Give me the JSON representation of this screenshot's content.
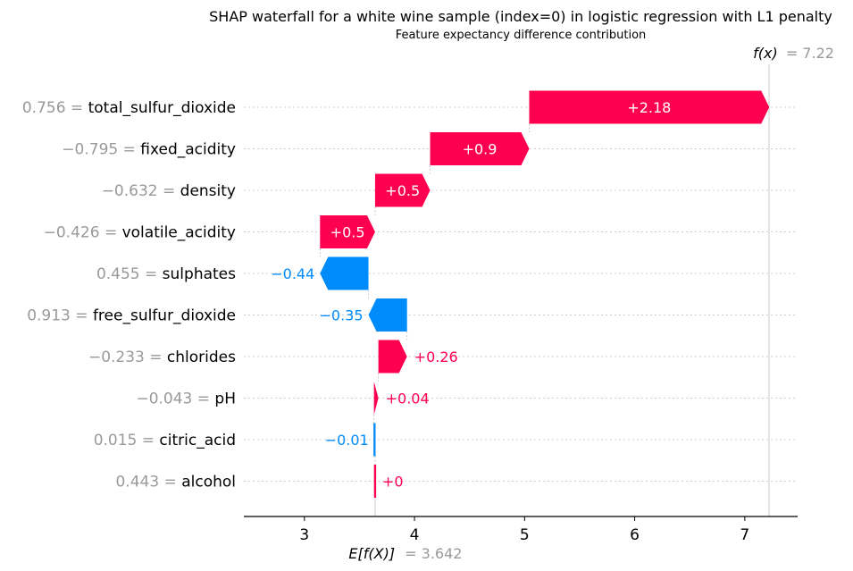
{
  "chart_data": {
    "type": "waterfall",
    "title": "SHAP waterfall for a white wine sample (index=0) in logistic regression with L1 penalty",
    "subtitle": "Feature expectancy difference contribution",
    "base_value": 3.642,
    "base_label": "E[f(X)]",
    "base_value_text": "= 3.642",
    "output_value": 7.22,
    "output_label": "f(x)",
    "output_value_text": "= 7.22",
    "xlim": [
      2.45,
      7.48
    ],
    "xticks": [
      3,
      4,
      5,
      6,
      7
    ],
    "xtick_labels": [
      "3",
      "4",
      "5",
      "6",
      "7"
    ],
    "grid": "dotted horizontal row guides",
    "colors": {
      "positive": "#ff0051",
      "negative": "#008bfb",
      "feature_value": "#999999",
      "guide": "#cccccc"
    },
    "features": [
      {
        "value": "0.756",
        "name": "total_sulfur_dioxide",
        "shap": 2.18,
        "label": "+2.18"
      },
      {
        "value": "−0.795",
        "name": "fixed_acidity",
        "shap": 0.9,
        "label": "+0.9"
      },
      {
        "value": "−0.632",
        "name": "density",
        "shap": 0.5,
        "label": "+0.5"
      },
      {
        "value": "−0.426",
        "name": "volatile_acidity",
        "shap": 0.5,
        "label": "+0.5"
      },
      {
        "value": "0.455",
        "name": "sulphates",
        "shap": -0.44,
        "label": "−0.44"
      },
      {
        "value": "0.913",
        "name": "free_sulfur_dioxide",
        "shap": -0.35,
        "label": "−0.35"
      },
      {
        "value": "−0.233",
        "name": "chlorides",
        "shap": 0.26,
        "label": "+0.26"
      },
      {
        "value": "−0.043",
        "name": "pH",
        "shap": 0.04,
        "label": "+0.04"
      },
      {
        "value": "0.015",
        "name": "citric_acid",
        "shap": -0.01,
        "label": "−0.01"
      },
      {
        "value": "0.443",
        "name": "alcohol",
        "shap": 0.0,
        "label": "+0"
      }
    ]
  }
}
